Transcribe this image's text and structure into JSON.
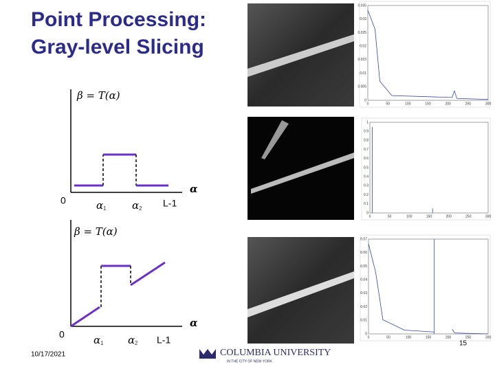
{
  "title": {
    "line1": "Point Processing:",
    "line2": "Gray-level Slicing"
  },
  "diagram1": {
    "formula": "β = T(α)",
    "origin": "0",
    "a1": "α",
    "a1_sub": "1",
    "a2": "α",
    "a2_sub": "2",
    "end": "L-1",
    "axis": "α"
  },
  "diagram2": {
    "formula": "β = T(α)",
    "origin": "0",
    "a1": "α",
    "a1_sub": "1",
    "a2": "α",
    "a2_sub": "2",
    "end": "L-1",
    "axis": "α"
  },
  "plots": [
    {
      "yticks": [
        "0",
        "0.005",
        "0.01",
        "0.015",
        "0.02",
        "0.025",
        "0.03",
        "0.035"
      ],
      "xticks": [
        "0",
        "50",
        "100",
        "150",
        "200",
        "250",
        "300"
      ]
    },
    {
      "yticks": [
        "0",
        "0.1",
        "0.2",
        "0.3",
        "0.4",
        "0.5",
        "0.6",
        "0.7",
        "0.8",
        "0.9",
        "1"
      ],
      "xticks": [
        "0",
        "50",
        "100",
        "150",
        "200",
        "250",
        "300"
      ]
    },
    {
      "yticks": [
        "0",
        "0.01",
        "0.02",
        "0.03",
        "0.04",
        "0.05",
        "0.06",
        "0.07"
      ],
      "xticks": [
        "0",
        "50",
        "100",
        "150",
        "200",
        "250",
        "300"
      ]
    }
  ],
  "footer": {
    "date": "10/17/2021",
    "logo": "COLUMBIA UNIVERSITY",
    "logo_sub": "IN THE CITY OF NEW YORK",
    "page": "15"
  }
}
